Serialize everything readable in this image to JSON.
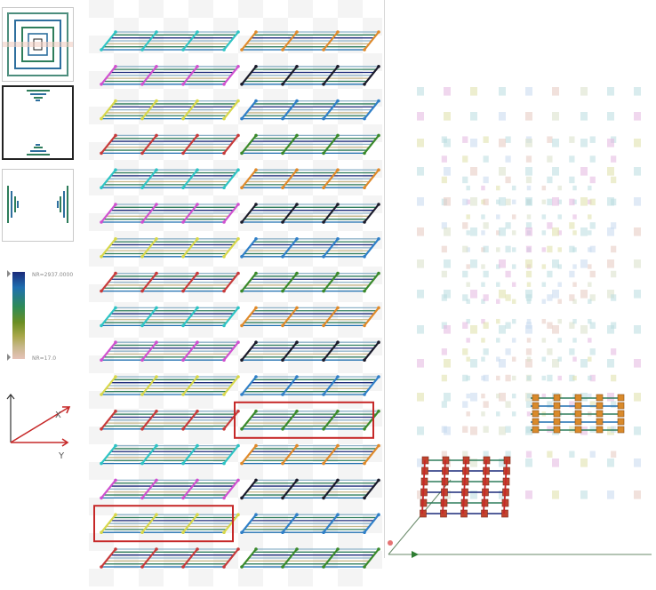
{
  "colorbar": {
    "max_label": "NR=2937.0000",
    "min_label": "NR=17.0",
    "gradient_colors": [
      "#1b2a7a",
      "#1f6fb0",
      "#2e8b57",
      "#6b8e23",
      "#a9a74a",
      "#c7b78a",
      "#e6c2b8"
    ]
  },
  "axes": {
    "x_label": "X",
    "y_label": "Y"
  },
  "thumbnails": [
    {
      "name": "top-view"
    },
    {
      "name": "front-view"
    },
    {
      "name": "side-view"
    }
  ],
  "layout_rows": {
    "left_edge_colors": [
      "#2ec4c4",
      "#d050d0",
      "#d8d84a",
      "#c83a3a",
      "#2ec4c4",
      "#d050d0",
      "#d8d84a",
      "#c83a3a",
      "#2ec4c4",
      "#d050d0",
      "#d8d84a",
      "#c83a3a",
      "#2ec4c4",
      "#d050d0",
      "#d8d84a",
      "#c83a3a"
    ],
    "right_edge_colors": [
      "#e08a2a",
      "#1a1a2a",
      "#2f7fc8",
      "#3a8a2a",
      "#e08a2a",
      "#1a1a2a",
      "#2f7fc8",
      "#3a8a2a",
      "#e08a2a",
      "#1a1a2a",
      "#2f7fc8",
      "#3a8a2a",
      "#e08a2a",
      "#1a1a2a",
      "#2f7fc8",
      "#3a8a2a"
    ],
    "highlighted": [
      {
        "column": "right",
        "row": 12
      },
      {
        "column": "left",
        "row": 15
      }
    ],
    "highlight_color": "#c62828"
  }
}
